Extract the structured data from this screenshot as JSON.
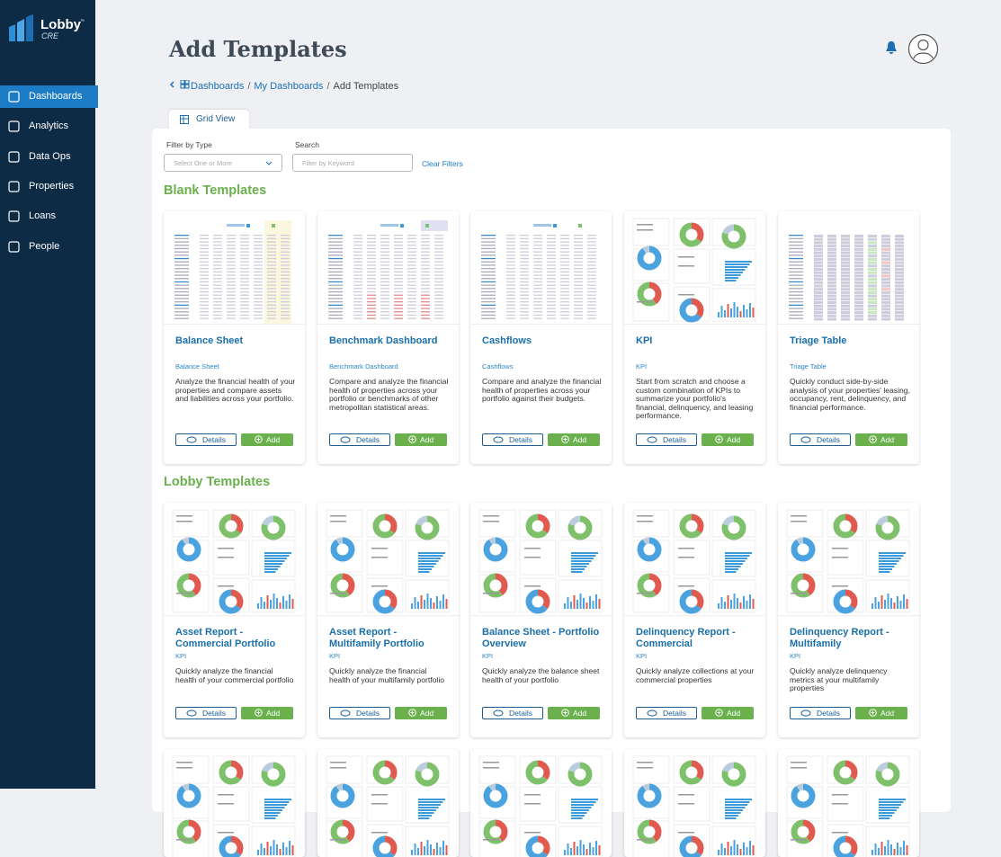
{
  "brand": {
    "name": "Lobby",
    "tm": "™",
    "sub": "CRE"
  },
  "nav": [
    "Dashboards",
    "Analytics",
    "Data Ops",
    "Properties",
    "Loans",
    "People"
  ],
  "header": {
    "title": "Add Templates"
  },
  "breadcrumb": {
    "items": [
      "Dashboards",
      "My Dashboards",
      "Add Templates"
    ],
    "separator": "/"
  },
  "tab": "Grid View",
  "filters": {
    "type_label": "Filter by Type",
    "type_placeholder": "Select One or More",
    "search_label": "Search",
    "search_placeholder": "Filter by Keyword",
    "clear": "Clear Filters"
  },
  "sections": [
    {
      "title": "Blank Templates",
      "cards": [
        {
          "title": "Balance Sheet",
          "tag": "Balance Sheet",
          "description": "Analyze the financial health of your properties and compare assets and liabilities across your portfolio.",
          "details": "Details",
          "add": "Add"
        },
        {
          "title": "Benchmark Dashboard",
          "tag": "Benchmark Dashboard",
          "description": "Compare and analyze the financial health of properties across your portfolio or benchmarks of other metropolitan statistical areas.",
          "details": "Details",
          "add": "Add"
        },
        {
          "title": "Cashflows",
          "tag": "Cashflows",
          "description": "Compare and analyze the financial health of properties across your portfolio against their budgets.",
          "details": "Details",
          "add": "Add"
        },
        {
          "title": "KPI",
          "tag": "KPI",
          "description": "Start from scratch and choose a custom combination of KPIs to summarize your portfolio's financial, delinquency, and leasing performance.",
          "details": "Details",
          "add": "Add"
        },
        {
          "title": "Triage Table",
          "tag": "Triage Table",
          "description": "Quickly conduct side-by-side analysis of your properties' leasing, occupancy, rent, delinquency, and financial performance.",
          "details": "Details",
          "add": "Add"
        }
      ]
    },
    {
      "title": "Lobby Templates",
      "cards": [
        {
          "title": "Asset Report - Commercial Portfolio",
          "tag": "KPI",
          "description": "Quickly analyze the financial health of your commercial portfolio",
          "details": "Details",
          "add": "Add"
        },
        {
          "title": "Asset Report - Multifamily Portfolio",
          "tag": "KPI",
          "description": "Quickly analyze the financial health of your multifamily portfolio",
          "details": "Details",
          "add": "Add"
        },
        {
          "title": "Balance Sheet - Portfolio Overview",
          "tag": "KPI",
          "description": "Quickly analyze the balance sheet health of your portfolio",
          "details": "Details",
          "add": "Add"
        },
        {
          "title": "Delinquency Report - Commercial",
          "tag": "KPI",
          "description": "Quickly analyze collections at your commercial properties",
          "details": "Details",
          "add": "Add"
        },
        {
          "title": "Delinquency Report - Multifamily",
          "tag": "KPI",
          "description": "Quickly analyze delinquency metrics at your multifamily properties",
          "details": "Details",
          "add": "Add"
        }
      ]
    }
  ]
}
